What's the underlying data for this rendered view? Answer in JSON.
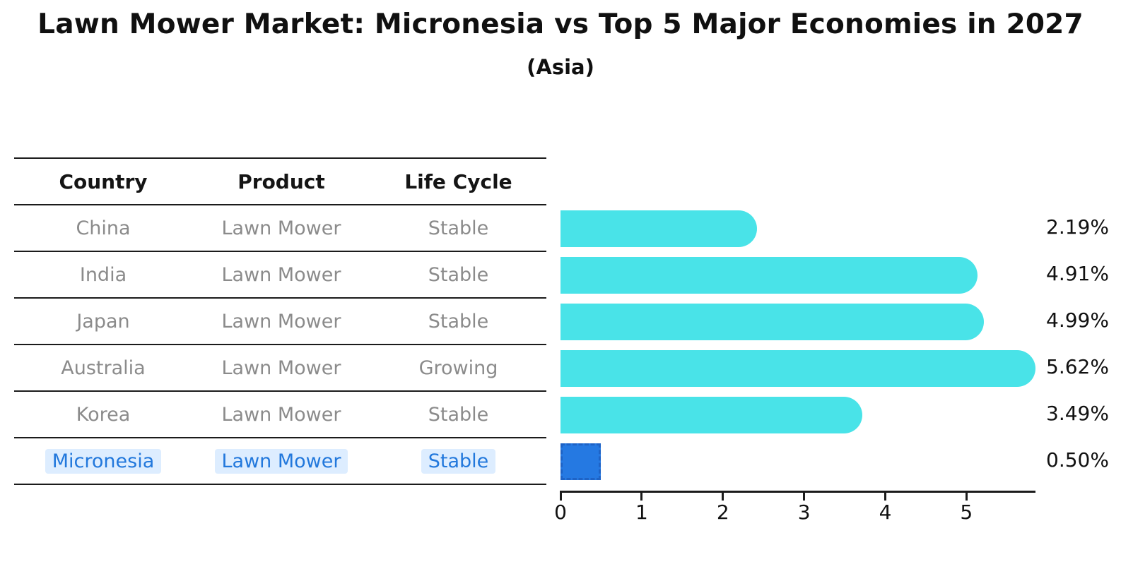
{
  "chart_data": {
    "type": "bar",
    "orientation": "horizontal",
    "title": "Lawn Mower Market: Micronesia vs Top 5 Major Economies in 2027",
    "subtitle": "(Asia)",
    "categories": [
      "China",
      "India",
      "Japan",
      "Australia",
      "Korea",
      "Micronesia"
    ],
    "values": [
      2.19,
      4.91,
      4.99,
      5.62,
      3.49,
      0.5
    ],
    "value_labels": [
      "2.19%",
      "4.91%",
      "4.99%",
      "5.62%",
      "3.49%",
      "0.50%"
    ],
    "x_ticks": [
      0,
      1,
      2,
      3,
      4,
      5
    ],
    "xlim": [
      0,
      5.85
    ],
    "grid": false,
    "legend": "none",
    "bar_color": "#49e3e8",
    "highlight_index": 5,
    "highlight_color": "#2579e2",
    "value_label_position": "right"
  },
  "table": {
    "headers": [
      "Country",
      "Product",
      "Life Cycle"
    ],
    "rows": [
      {
        "country": "China",
        "product": "Lawn Mower",
        "life_cycle": "Stable"
      },
      {
        "country": "India",
        "product": "Lawn Mower",
        "life_cycle": "Stable"
      },
      {
        "country": "Japan",
        "product": "Lawn Mower",
        "life_cycle": "Stable"
      },
      {
        "country": "Australia",
        "product": "Lawn Mower",
        "life_cycle": "Growing"
      },
      {
        "country": "Korea",
        "product": "Lawn Mower",
        "life_cycle": "Stable"
      },
      {
        "country": "Micronesia",
        "product": "Lawn Mower",
        "life_cycle": "Stable"
      }
    ],
    "highlighted_row": "Micronesia"
  },
  "colors": {
    "bar_cyan": "#49e3e8",
    "highlight_blue": "#2579e2",
    "highlight_border_blue": "#1e63c6",
    "highlight_text_blue": "#2278dc",
    "highlight_cell_bg": "#ddedff",
    "table_text_gray": "#8b8b8b",
    "header_text": "#151515",
    "line_black": "#1b1b1b"
  }
}
